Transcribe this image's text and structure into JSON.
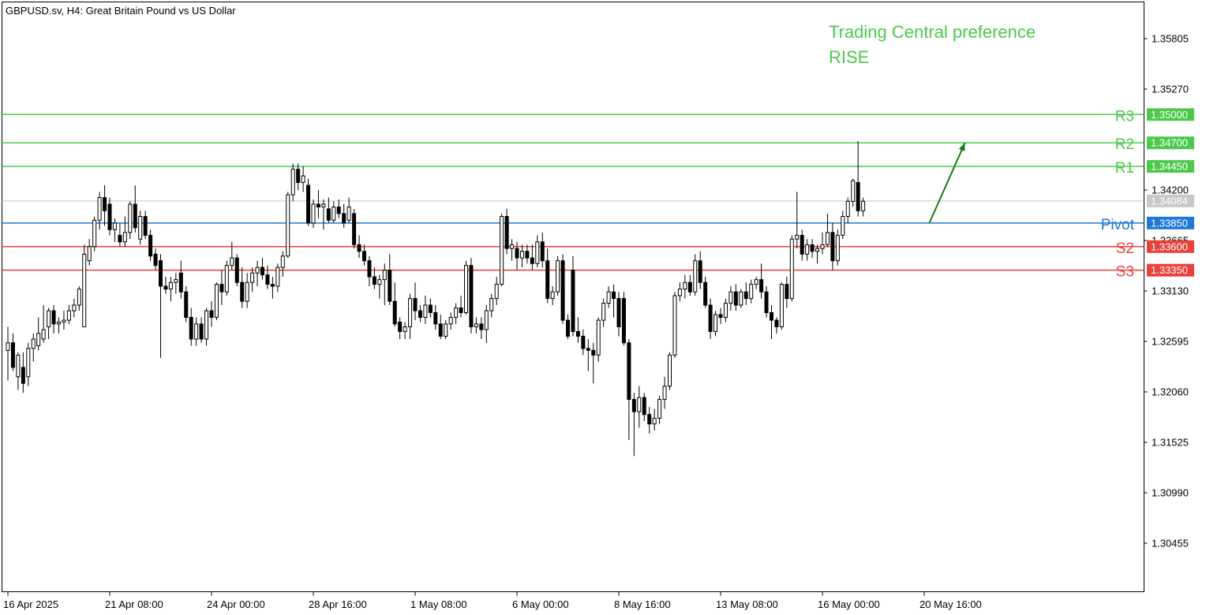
{
  "header": {
    "symbol_line": "GBPUSD.sv, H4:  Great Britain Pound vs US Dollar"
  },
  "annotation": {
    "line1": "Trading Central preference",
    "line2": "RISE"
  },
  "colors": {
    "resistance": "#4cc94c",
    "support": "#e8413c",
    "pivot": "#1f78d8",
    "current": "#c8c8c8",
    "arrow": "#1a7a1a",
    "candle": "#000000"
  },
  "chart_data": {
    "type": "candlestick",
    "ylim": [
      1.2996,
      1.36235
    ],
    "grid": false,
    "y_ticks": [
      "1.35805",
      "1.35270",
      "1.34200",
      "1.33665",
      "1.33130",
      "1.32595",
      "1.32060",
      "1.31525",
      "1.30990",
      "1.30455"
    ],
    "x_ticks": [
      "16 Apr 2025",
      "21 Apr 08:00",
      "24 Apr 00:00",
      "28 Apr 16:00",
      "1 May 08:00",
      "6 May 00:00",
      "8 May 16:00",
      "13 May 08:00",
      "16 May 00:00",
      "20 May 16:00"
    ],
    "levels": [
      {
        "name": "R3",
        "value": 1.35,
        "label": "1.35000",
        "kind": "resistance"
      },
      {
        "name": "R2",
        "value": 1.347,
        "label": "1.34700",
        "kind": "resistance"
      },
      {
        "name": "R1",
        "value": 1.3445,
        "label": "1.34450",
        "kind": "resistance"
      },
      {
        "name": "Pivot",
        "value": 1.3385,
        "label": "1.33850",
        "kind": "pivot"
      },
      {
        "name": "S2",
        "value": 1.336,
        "label": "1.33600",
        "kind": "support"
      },
      {
        "name": "S3",
        "value": 1.3335,
        "label": "1.33350",
        "kind": "support"
      }
    ],
    "current_price": {
      "value": 1.34084,
      "label": "1.34084"
    },
    "forecast_arrow": {
      "from_bar": 181,
      "from": 1.3385,
      "to_bar": 188,
      "to": 1.347
    },
    "candles": [
      {
        "o": 1.325,
        "h": 1.3275,
        "l": 1.3218,
        "c": 1.3258
      },
      {
        "o": 1.3258,
        "h": 1.3268,
        "l": 1.3228,
        "c": 1.3232
      },
      {
        "o": 1.3222,
        "h": 1.3248,
        "l": 1.3208,
        "c": 1.3245
      },
      {
        "o": 1.3232,
        "h": 1.3248,
        "l": 1.3205,
        "c": 1.3215
      },
      {
        "o": 1.3222,
        "h": 1.3258,
        "l": 1.3212,
        "c": 1.3252
      },
      {
        "o": 1.3252,
        "h": 1.3268,
        "l": 1.3238,
        "c": 1.3262
      },
      {
        "o": 1.3255,
        "h": 1.3285,
        "l": 1.325,
        "c": 1.3268
      },
      {
        "o": 1.3262,
        "h": 1.3298,
        "l": 1.3258,
        "c": 1.3272
      },
      {
        "o": 1.3275,
        "h": 1.3295,
        "l": 1.3262,
        "c": 1.3292
      },
      {
        "o": 1.3292,
        "h": 1.3298,
        "l": 1.3268,
        "c": 1.3278
      },
      {
        "o": 1.3278,
        "h": 1.3285,
        "l": 1.3268,
        "c": 1.328
      },
      {
        "o": 1.328,
        "h": 1.3292,
        "l": 1.3272,
        "c": 1.3282
      },
      {
        "o": 1.3282,
        "h": 1.3298,
        "l": 1.3278,
        "c": 1.3292
      },
      {
        "o": 1.3292,
        "h": 1.3305,
        "l": 1.3285,
        "c": 1.3298
      },
      {
        "o": 1.3298,
        "h": 1.3318,
        "l": 1.3292,
        "c": 1.3315
      },
      {
        "o": 1.3275,
        "h": 1.3362,
        "l": 1.3275,
        "c": 1.3352
      },
      {
        "o": 1.3345,
        "h": 1.3368,
        "l": 1.334,
        "c": 1.336
      },
      {
        "o": 1.336,
        "h": 1.3392,
        "l": 1.3355,
        "c": 1.3388
      },
      {
        "o": 1.3388,
        "h": 1.3418,
        "l": 1.3378,
        "c": 1.3412
      },
      {
        "o": 1.3412,
        "h": 1.3425,
        "l": 1.3382,
        "c": 1.3398
      },
      {
        "o": 1.3405,
        "h": 1.3412,
        "l": 1.3372,
        "c": 1.3378
      },
      {
        "o": 1.3378,
        "h": 1.339,
        "l": 1.3365,
        "c": 1.3385
      },
      {
        "o": 1.3372,
        "h": 1.3385,
        "l": 1.336,
        "c": 1.3365
      },
      {
        "o": 1.3365,
        "h": 1.3392,
        "l": 1.336,
        "c": 1.3375
      },
      {
        "o": 1.3375,
        "h": 1.3408,
        "l": 1.3368,
        "c": 1.3405
      },
      {
        "o": 1.3405,
        "h": 1.3425,
        "l": 1.3375,
        "c": 1.338
      },
      {
        "o": 1.3368,
        "h": 1.3398,
        "l": 1.3362,
        "c": 1.3392
      },
      {
        "o": 1.3392,
        "h": 1.3398,
        "l": 1.3368,
        "c": 1.3372
      },
      {
        "o": 1.3372,
        "h": 1.3378,
        "l": 1.3345,
        "c": 1.335
      },
      {
        "o": 1.3352,
        "h": 1.3358,
        "l": 1.3335,
        "c": 1.334
      },
      {
        "o": 1.3345,
        "h": 1.3352,
        "l": 1.3242,
        "c": 1.3318
      },
      {
        "o": 1.3318,
        "h": 1.3328,
        "l": 1.331,
        "c": 1.3315
      },
      {
        "o": 1.3315,
        "h": 1.3328,
        "l": 1.3302,
        "c": 1.3322
      },
      {
        "o": 1.3322,
        "h": 1.3332,
        "l": 1.331,
        "c": 1.3325
      },
      {
        "o": 1.3332,
        "h": 1.3345,
        "l": 1.3305,
        "c": 1.3312
      },
      {
        "o": 1.3312,
        "h": 1.3318,
        "l": 1.328,
        "c": 1.3285
      },
      {
        "o": 1.3285,
        "h": 1.3295,
        "l": 1.3255,
        "c": 1.3262
      },
      {
        "o": 1.3262,
        "h": 1.3285,
        "l": 1.3255,
        "c": 1.3278
      },
      {
        "o": 1.3278,
        "h": 1.3285,
        "l": 1.3258,
        "c": 1.3262
      },
      {
        "o": 1.3262,
        "h": 1.3295,
        "l": 1.3255,
        "c": 1.3292
      },
      {
        "o": 1.3292,
        "h": 1.3302,
        "l": 1.3275,
        "c": 1.3285
      },
      {
        "o": 1.3285,
        "h": 1.3322,
        "l": 1.3282,
        "c": 1.332
      },
      {
        "o": 1.332,
        "h": 1.3335,
        "l": 1.3298,
        "c": 1.3312
      },
      {
        "o": 1.3312,
        "h": 1.3345,
        "l": 1.3308,
        "c": 1.334
      },
      {
        "o": 1.334,
        "h": 1.3365,
        "l": 1.3335,
        "c": 1.3348
      },
      {
        "o": 1.3348,
        "h": 1.3352,
        "l": 1.3318,
        "c": 1.3322
      },
      {
        "o": 1.3322,
        "h": 1.3338,
        "l": 1.3295,
        "c": 1.3302
      },
      {
        "o": 1.3302,
        "h": 1.3332,
        "l": 1.3295,
        "c": 1.3322
      },
      {
        "o": 1.3322,
        "h": 1.3338,
        "l": 1.3312,
        "c": 1.3332
      },
      {
        "o": 1.3332,
        "h": 1.3345,
        "l": 1.3318,
        "c": 1.3338
      },
      {
        "o": 1.3338,
        "h": 1.3348,
        "l": 1.3325,
        "c": 1.333
      },
      {
        "o": 1.333,
        "h": 1.334,
        "l": 1.3315,
        "c": 1.332
      },
      {
        "o": 1.332,
        "h": 1.3328,
        "l": 1.3305,
        "c": 1.3318
      },
      {
        "o": 1.3318,
        "h": 1.3342,
        "l": 1.3312,
        "c": 1.3338
      },
      {
        "o": 1.3338,
        "h": 1.3355,
        "l": 1.3328,
        "c": 1.335
      },
      {
        "o": 1.335,
        "h": 1.3418,
        "l": 1.3348,
        "c": 1.3415
      },
      {
        "o": 1.3415,
        "h": 1.3448,
        "l": 1.3408,
        "c": 1.3442
      },
      {
        "o": 1.3442,
        "h": 1.3448,
        "l": 1.342,
        "c": 1.3428
      },
      {
        "o": 1.3428,
        "h": 1.3445,
        "l": 1.3418,
        "c": 1.3435
      },
      {
        "o": 1.3425,
        "h": 1.3432,
        "l": 1.3382,
        "c": 1.3385
      },
      {
        "o": 1.3385,
        "h": 1.341,
        "l": 1.338,
        "c": 1.3405
      },
      {
        "o": 1.3405,
        "h": 1.342,
        "l": 1.339,
        "c": 1.3402
      },
      {
        "o": 1.3402,
        "h": 1.341,
        "l": 1.3378,
        "c": 1.3405
      },
      {
        "o": 1.34,
        "h": 1.3412,
        "l": 1.3385,
        "c": 1.3388
      },
      {
        "o": 1.3388,
        "h": 1.3408,
        "l": 1.3385,
        "c": 1.3402
      },
      {
        "o": 1.3402,
        "h": 1.341,
        "l": 1.339,
        "c": 1.3395
      },
      {
        "o": 1.3395,
        "h": 1.3405,
        "l": 1.338,
        "c": 1.3385
      },
      {
        "o": 1.3388,
        "h": 1.3412,
        "l": 1.3385,
        "c": 1.3402
      },
      {
        "o": 1.3395,
        "h": 1.34,
        "l": 1.3358,
        "c": 1.3362
      },
      {
        "o": 1.3362,
        "h": 1.3372,
        "l": 1.3348,
        "c": 1.3355
      },
      {
        "o": 1.3355,
        "h": 1.3362,
        "l": 1.334,
        "c": 1.3345
      },
      {
        "o": 1.3345,
        "h": 1.335,
        "l": 1.3318,
        "c": 1.3328
      },
      {
        "o": 1.3328,
        "h": 1.3338,
        "l": 1.3315,
        "c": 1.332
      },
      {
        "o": 1.332,
        "h": 1.333,
        "l": 1.3305,
        "c": 1.3325
      },
      {
        "o": 1.3325,
        "h": 1.3342,
        "l": 1.3298,
        "c": 1.3335
      },
      {
        "o": 1.3335,
        "h": 1.3352,
        "l": 1.3298,
        "c": 1.3302
      },
      {
        "o": 1.3302,
        "h": 1.3322,
        "l": 1.3275,
        "c": 1.3278
      },
      {
        "o": 1.328,
        "h": 1.3285,
        "l": 1.3262,
        "c": 1.327
      },
      {
        "o": 1.327,
        "h": 1.328,
        "l": 1.3262,
        "c": 1.3275
      },
      {
        "o": 1.3275,
        "h": 1.331,
        "l": 1.3262,
        "c": 1.3305
      },
      {
        "o": 1.3305,
        "h": 1.3322,
        "l": 1.3282,
        "c": 1.3292
      },
      {
        "o": 1.3292,
        "h": 1.3298,
        "l": 1.328,
        "c": 1.3285
      },
      {
        "o": 1.3285,
        "h": 1.3308,
        "l": 1.3278,
        "c": 1.3298
      },
      {
        "o": 1.3298,
        "h": 1.3305,
        "l": 1.3285,
        "c": 1.329
      },
      {
        "o": 1.329,
        "h": 1.3298,
        "l": 1.3272,
        "c": 1.3278
      },
      {
        "o": 1.3278,
        "h": 1.3288,
        "l": 1.3262,
        "c": 1.3265
      },
      {
        "o": 1.3265,
        "h": 1.3282,
        "l": 1.3262,
        "c": 1.3278
      },
      {
        "o": 1.3278,
        "h": 1.329,
        "l": 1.3272,
        "c": 1.3285
      },
      {
        "o": 1.3285,
        "h": 1.33,
        "l": 1.3278,
        "c": 1.3295
      },
      {
        "o": 1.3295,
        "h": 1.3308,
        "l": 1.3285,
        "c": 1.329
      },
      {
        "o": 1.329,
        "h": 1.3345,
        "l": 1.3288,
        "c": 1.334
      },
      {
        "o": 1.334,
        "h": 1.3348,
        "l": 1.3268,
        "c": 1.3275
      },
      {
        "o": 1.3275,
        "h": 1.3285,
        "l": 1.3268,
        "c": 1.3278
      },
      {
        "o": 1.3278,
        "h": 1.3285,
        "l": 1.3262,
        "c": 1.3272
      },
      {
        "o": 1.3272,
        "h": 1.3298,
        "l": 1.3258,
        "c": 1.3292
      },
      {
        "o": 1.3292,
        "h": 1.331,
        "l": 1.3285,
        "c": 1.3305
      },
      {
        "o": 1.3305,
        "h": 1.3328,
        "l": 1.3298,
        "c": 1.332
      },
      {
        "o": 1.332,
        "h": 1.3395,
        "l": 1.3318,
        "c": 1.3392
      },
      {
        "o": 1.3392,
        "h": 1.34,
        "l": 1.3352,
        "c": 1.3358
      },
      {
        "o": 1.3358,
        "h": 1.3368,
        "l": 1.3345,
        "c": 1.3362
      },
      {
        "o": 1.3358,
        "h": 1.3365,
        "l": 1.3335,
        "c": 1.3348
      },
      {
        "o": 1.3348,
        "h": 1.3362,
        "l": 1.3338,
        "c": 1.3355
      },
      {
        "o": 1.3355,
        "h": 1.3362,
        "l": 1.3342,
        "c": 1.3348
      },
      {
        "o": 1.3348,
        "h": 1.3362,
        "l": 1.3335,
        "c": 1.3342
      },
      {
        "o": 1.3342,
        "h": 1.3372,
        "l": 1.3338,
        "c": 1.3365
      },
      {
        "o": 1.3365,
        "h": 1.3375,
        "l": 1.3338,
        "c": 1.3345
      },
      {
        "o": 1.3345,
        "h": 1.3358,
        "l": 1.33,
        "c": 1.3305
      },
      {
        "o": 1.3305,
        "h": 1.3318,
        "l": 1.3298,
        "c": 1.3312
      },
      {
        "o": 1.3312,
        "h": 1.335,
        "l": 1.3308,
        "c": 1.3345
      },
      {
        "o": 1.3345,
        "h": 1.3352,
        "l": 1.3278,
        "c": 1.3282
      },
      {
        "o": 1.3282,
        "h": 1.3288,
        "l": 1.3262,
        "c": 1.3265
      },
      {
        "o": 1.3335,
        "h": 1.335,
        "l": 1.3265,
        "c": 1.327
      },
      {
        "o": 1.327,
        "h": 1.3285,
        "l": 1.3258,
        "c": 1.3265
      },
      {
        "o": 1.3265,
        "h": 1.3272,
        "l": 1.3245,
        "c": 1.3252
      },
      {
        "o": 1.3252,
        "h": 1.3262,
        "l": 1.3228,
        "c": 1.325
      },
      {
        "o": 1.325,
        "h": 1.3258,
        "l": 1.3215,
        "c": 1.3245
      },
      {
        "o": 1.3245,
        "h": 1.3285,
        "l": 1.3238,
        "c": 1.3282
      },
      {
        "o": 1.3282,
        "h": 1.3305,
        "l": 1.3275,
        "c": 1.33
      },
      {
        "o": 1.33,
        "h": 1.3318,
        "l": 1.3295,
        "c": 1.3312
      },
      {
        "o": 1.3312,
        "h": 1.332,
        "l": 1.3285,
        "c": 1.3305
      },
      {
        "o": 1.3305,
        "h": 1.3312,
        "l": 1.3265,
        "c": 1.3275
      },
      {
        "o": 1.3305,
        "h": 1.3312,
        "l": 1.3255,
        "c": 1.3258
      },
      {
        "o": 1.3258,
        "h": 1.3262,
        "l": 1.3155,
        "c": 1.3198
      },
      {
        "o": 1.3198,
        "h": 1.3205,
        "l": 1.3138,
        "c": 1.3185
      },
      {
        "o": 1.3185,
        "h": 1.3212,
        "l": 1.3168,
        "c": 1.32
      },
      {
        "o": 1.32,
        "h": 1.3205,
        "l": 1.3175,
        "c": 1.3182
      },
      {
        "o": 1.3182,
        "h": 1.319,
        "l": 1.3162,
        "c": 1.3172
      },
      {
        "o": 1.3172,
        "h": 1.3188,
        "l": 1.3165,
        "c": 1.3178
      },
      {
        "o": 1.3178,
        "h": 1.3202,
        "l": 1.3172,
        "c": 1.3198
      },
      {
        "o": 1.3198,
        "h": 1.3222,
        "l": 1.3188,
        "c": 1.3212
      },
      {
        "o": 1.3212,
        "h": 1.3248,
        "l": 1.3208,
        "c": 1.3245
      },
      {
        "o": 1.3245,
        "h": 1.3312,
        "l": 1.3242,
        "c": 1.3308
      },
      {
        "o": 1.3308,
        "h": 1.3322,
        "l": 1.3302,
        "c": 1.3315
      },
      {
        "o": 1.3315,
        "h": 1.333,
        "l": 1.3305,
        "c": 1.3322
      },
      {
        "o": 1.3322,
        "h": 1.333,
        "l": 1.3308,
        "c": 1.3312
      },
      {
        "o": 1.3312,
        "h": 1.3352,
        "l": 1.3308,
        "c": 1.3345
      },
      {
        "o": 1.3345,
        "h": 1.3355,
        "l": 1.3315,
        "c": 1.3322
      },
      {
        "o": 1.3322,
        "h": 1.3328,
        "l": 1.3295,
        "c": 1.3298
      },
      {
        "o": 1.3298,
        "h": 1.3305,
        "l": 1.3262,
        "c": 1.327
      },
      {
        "o": 1.327,
        "h": 1.3292,
        "l": 1.3265,
        "c": 1.3288
      },
      {
        "o": 1.3288,
        "h": 1.3295,
        "l": 1.3278,
        "c": 1.3285
      },
      {
        "o": 1.3285,
        "h": 1.3305,
        "l": 1.328,
        "c": 1.33
      },
      {
        "o": 1.33,
        "h": 1.3318,
        "l": 1.3292,
        "c": 1.3312
      },
      {
        "o": 1.3312,
        "h": 1.332,
        "l": 1.3292,
        "c": 1.3298
      },
      {
        "o": 1.3298,
        "h": 1.3315,
        "l": 1.3295,
        "c": 1.3312
      },
      {
        "o": 1.3312,
        "h": 1.3322,
        "l": 1.3298,
        "c": 1.3305
      },
      {
        "o": 1.3305,
        "h": 1.3325,
        "l": 1.33,
        "c": 1.332
      },
      {
        "o": 1.332,
        "h": 1.3328,
        "l": 1.3315,
        "c": 1.3325
      },
      {
        "o": 1.3325,
        "h": 1.3342,
        "l": 1.3305,
        "c": 1.3312
      },
      {
        "o": 1.3312,
        "h": 1.3318,
        "l": 1.3285,
        "c": 1.329
      },
      {
        "o": 1.329,
        "h": 1.3298,
        "l": 1.3262,
        "c": 1.3282
      },
      {
        "o": 1.3282,
        "h": 1.3285,
        "l": 1.3268,
        "c": 1.3275
      },
      {
        "o": 1.3275,
        "h": 1.3322,
        "l": 1.3272,
        "c": 1.332
      },
      {
        "o": 1.332,
        "h": 1.3328,
        "l": 1.3295,
        "c": 1.3305
      },
      {
        "o": 1.3305,
        "h": 1.3372,
        "l": 1.3302,
        "c": 1.3368
      },
      {
        "o": 1.3368,
        "h": 1.3418,
        "l": 1.3358,
        "c": 1.3372
      },
      {
        "o": 1.3372,
        "h": 1.3378,
        "l": 1.3345,
        "c": 1.3352
      },
      {
        "o": 1.3352,
        "h": 1.3368,
        "l": 1.3345,
        "c": 1.3362
      },
      {
        "o": 1.3362,
        "h": 1.3368,
        "l": 1.3348,
        "c": 1.3355
      },
      {
        "o": 1.3355,
        "h": 1.3362,
        "l": 1.3342,
        "c": 1.3358
      },
      {
        "o": 1.3358,
        "h": 1.3375,
        "l": 1.3352,
        "c": 1.3362
      },
      {
        "o": 1.3362,
        "h": 1.3395,
        "l": 1.336,
        "c": 1.3375
      },
      {
        "o": 1.3375,
        "h": 1.3385,
        "l": 1.3335,
        "c": 1.3345
      },
      {
        "o": 1.3345,
        "h": 1.3378,
        "l": 1.334,
        "c": 1.3372
      },
      {
        "o": 1.3372,
        "h": 1.3398,
        "l": 1.3368,
        "c": 1.3392
      },
      {
        "o": 1.3392,
        "h": 1.3412,
        "l": 1.3385,
        "c": 1.3408
      },
      {
        "o": 1.3408,
        "h": 1.3432,
        "l": 1.3402,
        "c": 1.343
      },
      {
        "o": 1.3428,
        "h": 1.3472,
        "l": 1.3392,
        "c": 1.3398
      },
      {
        "o": 1.3398,
        "h": 1.3412,
        "l": 1.3392,
        "c": 1.3408
      }
    ]
  }
}
